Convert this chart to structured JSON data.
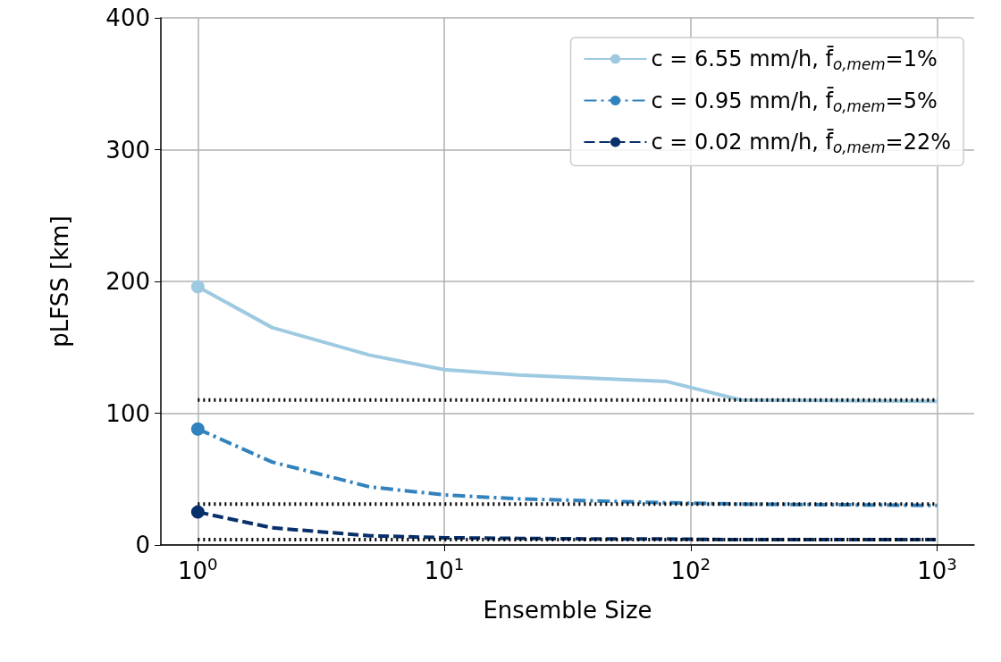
{
  "chart_data": {
    "type": "line",
    "xlabel": "Ensemble Size",
    "ylabel": "pLFSS [km]",
    "xlim": [
      0.708,
      1413
    ],
    "xticks": [
      {
        "value": 1,
        "label": "10$^{0}$"
      },
      {
        "value": 10,
        "label": "10$^{1}$"
      },
      {
        "value": 100,
        "label": "10$^{2}$"
      },
      {
        "value": 1000,
        "label": "10$^{3}$"
      }
    ],
    "ylim": [
      0,
      400
    ],
    "yticks": [
      0,
      100,
      200,
      300,
      400
    ],
    "log": "x",
    "grid": true,
    "legend": "top right",
    "series": [
      {
        "name": "c = 6.55 mm/h, f̄$_{o,mem}$=1%",
        "color": "#9ecae1",
        "line_style": "solid",
        "marker": "none",
        "x": [
          1,
          2,
          5,
          10,
          20,
          80,
          160,
          1000
        ],
        "values": [
          196,
          165,
          144,
          133,
          129,
          124,
          110,
          109
        ]
      },
      {
        "name": "c = 0.95 mm/h, f̄$_{o,mem}$=5%",
        "color": "#3182bd",
        "line_style": "dashdot",
        "marker": "none",
        "x": [
          1,
          2,
          5,
          10,
          20,
          50,
          80,
          160,
          1000
        ],
        "values": [
          88,
          63,
          44,
          38,
          35,
          33,
          32,
          31,
          30
        ]
      },
      {
        "name": "c = 0.02 mm/h, f̄$_{o,mem}$=22%",
        "color": "#08306b",
        "line_style": "dashed",
        "marker": "none",
        "x": [
          1,
          2,
          5,
          10,
          20,
          50,
          80,
          160,
          1000
        ],
        "values": [
          25,
          13,
          7,
          5.5,
          5,
          4.5,
          4.5,
          4,
          4
        ]
      },
      {
        "type": "scatter",
        "color": "#9ecae1",
        "marker": "circle",
        "x": [
          1
        ],
        "values": [
          196
        ]
      },
      {
        "type": "scatter",
        "color": "#3182bd",
        "marker": "circle",
        "x": [
          1
        ],
        "values": [
          88
        ]
      },
      {
        "type": "scatter",
        "color": "#08306b",
        "marker": "circle",
        "x": [
          1
        ],
        "values": [
          25
        ]
      },
      {
        "color": "#000000",
        "line_style": "dotted",
        "marker": "none",
        "x": [
          1,
          1000
        ],
        "values": [
          110,
          110
        ]
      },
      {
        "color": "#000000",
        "line_style": "dotted",
        "marker": "none",
        "x": [
          1,
          1000
        ],
        "values": [
          31,
          31
        ]
      },
      {
        "color": "#000000",
        "line_style": "dotted",
        "marker": "none",
        "x": [
          1,
          1000
        ],
        "values": [
          4,
          4
        ]
      }
    ]
  }
}
